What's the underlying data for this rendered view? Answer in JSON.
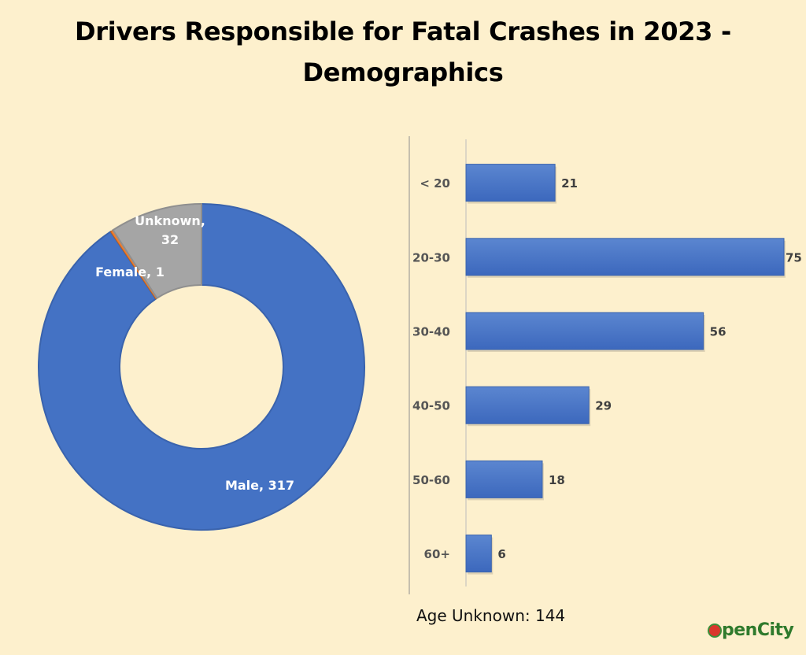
{
  "title_line1": "Drivers Responsible for Fatal Crashes in 2023 -",
  "title_line2": "Demographics",
  "footnote": "Age Unknown: 144",
  "logo_text": "OpenCity",
  "colors": {
    "background": "#fdf0cd",
    "male": "#4472c4",
    "female": "#ed7d31",
    "unknown": "#a5a5a5",
    "bar": "#4472c4"
  },
  "chart_data": [
    {
      "type": "pie",
      "variant": "donut",
      "slices": [
        {
          "label": "Male",
          "value": 317,
          "data_label": "Male, 317"
        },
        {
          "label": "Female",
          "value": 1,
          "data_label": "Female, 1"
        },
        {
          "label": "Unknown",
          "value": 32,
          "data_label": "Unknown, 32"
        }
      ]
    },
    {
      "type": "bar",
      "orientation": "horizontal",
      "categories": [
        "< 20",
        "20-30",
        "30-40",
        "40-50",
        "50-60",
        "60+"
      ],
      "values": [
        21,
        75,
        56,
        29,
        18,
        6
      ],
      "xlim": [
        0,
        75
      ],
      "grid": false
    }
  ]
}
